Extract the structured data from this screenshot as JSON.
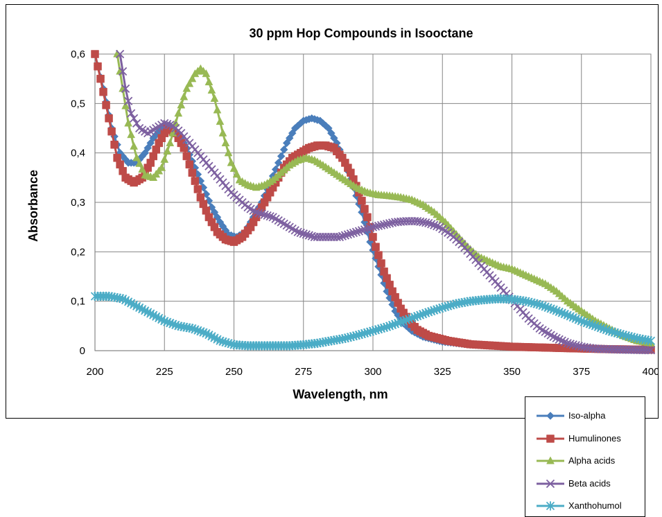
{
  "chart_data": {
    "type": "line",
    "title": "30 ppm Hop Compounds in Isooctane",
    "xlabel": "Wavelength, nm",
    "ylabel": "Absorbance",
    "xlim": [
      200,
      400
    ],
    "ylim": [
      0,
      0.6
    ],
    "x_ticks": [
      "200",
      "225",
      "250",
      "275",
      "300",
      "325",
      "350",
      "375",
      "400"
    ],
    "y_ticks": [
      "0",
      "0,1",
      "0,2",
      "0,3",
      "0,4",
      "0,5",
      "0,6"
    ],
    "grid": true,
    "legend_position": "bottom-right, outside",
    "series": [
      {
        "name": "Iso-alpha",
        "color": "#4a7ebb",
        "marker": "diamond",
        "points": [
          [
            200,
            0.6
          ],
          [
            203,
            0.53
          ],
          [
            206,
            0.45
          ],
          [
            209,
            0.4
          ],
          [
            212,
            0.38
          ],
          [
            215,
            0.38
          ],
          [
            218,
            0.4
          ],
          [
            221,
            0.43
          ],
          [
            224,
            0.45
          ],
          [
            227,
            0.455
          ],
          [
            230,
            0.44
          ],
          [
            233,
            0.41
          ],
          [
            236,
            0.37
          ],
          [
            239,
            0.33
          ],
          [
            242,
            0.29
          ],
          [
            245,
            0.26
          ],
          [
            248,
            0.235
          ],
          [
            251,
            0.23
          ],
          [
            254,
            0.24
          ],
          [
            257,
            0.27
          ],
          [
            260,
            0.3
          ],
          [
            263,
            0.34
          ],
          [
            266,
            0.38
          ],
          [
            269,
            0.42
          ],
          [
            272,
            0.45
          ],
          [
            275,
            0.465
          ],
          [
            278,
            0.47
          ],
          [
            281,
            0.465
          ],
          [
            284,
            0.45
          ],
          [
            287,
            0.42
          ],
          [
            290,
            0.38
          ],
          [
            293,
            0.33
          ],
          [
            296,
            0.28
          ],
          [
            299,
            0.22
          ],
          [
            302,
            0.17
          ],
          [
            305,
            0.12
          ],
          [
            308,
            0.08
          ],
          [
            311,
            0.055
          ],
          [
            314,
            0.04
          ],
          [
            318,
            0.028
          ],
          [
            325,
            0.018
          ],
          [
            335,
            0.012
          ],
          [
            350,
            0.008
          ],
          [
            370,
            0.005
          ],
          [
            385,
            0.003
          ],
          [
            400,
            0.002
          ]
        ]
      },
      {
        "name": "Humulinones",
        "color": "#be4b48",
        "marker": "square",
        "points": [
          [
            200,
            0.6
          ],
          [
            202,
            0.55
          ],
          [
            205,
            0.47
          ],
          [
            208,
            0.39
          ],
          [
            211,
            0.35
          ],
          [
            214,
            0.34
          ],
          [
            217,
            0.35
          ],
          [
            220,
            0.38
          ],
          [
            223,
            0.42
          ],
          [
            226,
            0.45
          ],
          [
            229,
            0.44
          ],
          [
            232,
            0.41
          ],
          [
            235,
            0.36
          ],
          [
            238,
            0.31
          ],
          [
            241,
            0.27
          ],
          [
            244,
            0.24
          ],
          [
            247,
            0.225
          ],
          [
            250,
            0.22
          ],
          [
            253,
            0.23
          ],
          [
            256,
            0.25
          ],
          [
            259,
            0.28
          ],
          [
            262,
            0.31
          ],
          [
            265,
            0.34
          ],
          [
            268,
            0.37
          ],
          [
            271,
            0.39
          ],
          [
            274,
            0.4
          ],
          [
            277,
            0.41
          ],
          [
            280,
            0.415
          ],
          [
            283,
            0.415
          ],
          [
            286,
            0.41
          ],
          [
            289,
            0.39
          ],
          [
            292,
            0.36
          ],
          [
            295,
            0.32
          ],
          [
            298,
            0.27
          ],
          [
            301,
            0.21
          ],
          [
            304,
            0.16
          ],
          [
            307,
            0.12
          ],
          [
            310,
            0.085
          ],
          [
            313,
            0.06
          ],
          [
            316,
            0.042
          ],
          [
            320,
            0.03
          ],
          [
            327,
            0.02
          ],
          [
            335,
            0.013
          ],
          [
            350,
            0.008
          ],
          [
            370,
            0.005
          ],
          [
            385,
            0.003
          ],
          [
            400,
            0.002
          ]
        ]
      },
      {
        "name": "Alpha acids",
        "color": "#98b954",
        "marker": "triangle",
        "points": [
          [
            208,
            0.6
          ],
          [
            210,
            0.53
          ],
          [
            212,
            0.46
          ],
          [
            215,
            0.39
          ],
          [
            218,
            0.355
          ],
          [
            221,
            0.35
          ],
          [
            224,
            0.37
          ],
          [
            227,
            0.42
          ],
          [
            230,
            0.48
          ],
          [
            233,
            0.53
          ],
          [
            236,
            0.56
          ],
          [
            238,
            0.57
          ],
          [
            240,
            0.56
          ],
          [
            243,
            0.51
          ],
          [
            246,
            0.44
          ],
          [
            249,
            0.38
          ],
          [
            252,
            0.345
          ],
          [
            255,
            0.335
          ],
          [
            258,
            0.33
          ],
          [
            261,
            0.335
          ],
          [
            264,
            0.345
          ],
          [
            267,
            0.36
          ],
          [
            270,
            0.375
          ],
          [
            273,
            0.385
          ],
          [
            276,
            0.39
          ],
          [
            279,
            0.385
          ],
          [
            282,
            0.375
          ],
          [
            286,
            0.36
          ],
          [
            290,
            0.345
          ],
          [
            294,
            0.33
          ],
          [
            298,
            0.32
          ],
          [
            302,
            0.315
          ],
          [
            306,
            0.313
          ],
          [
            310,
            0.31
          ],
          [
            314,
            0.305
          ],
          [
            318,
            0.295
          ],
          [
            322,
            0.28
          ],
          [
            326,
            0.26
          ],
          [
            330,
            0.235
          ],
          [
            334,
            0.21
          ],
          [
            338,
            0.19
          ],
          [
            342,
            0.18
          ],
          [
            346,
            0.17
          ],
          [
            350,
            0.165
          ],
          [
            354,
            0.155
          ],
          [
            358,
            0.145
          ],
          [
            362,
            0.135
          ],
          [
            366,
            0.12
          ],
          [
            370,
            0.1
          ],
          [
            375,
            0.08
          ],
          [
            380,
            0.06
          ],
          [
            385,
            0.045
          ],
          [
            390,
            0.03
          ],
          [
            395,
            0.02
          ],
          [
            400,
            0.015
          ]
        ]
      },
      {
        "name": "Beta acids",
        "color": "#7d60a0",
        "marker": "x",
        "points": [
          [
            209,
            0.6
          ],
          [
            211,
            0.53
          ],
          [
            213,
            0.48
          ],
          [
            216,
            0.45
          ],
          [
            219,
            0.44
          ],
          [
            222,
            0.45
          ],
          [
            225,
            0.46
          ],
          [
            228,
            0.455
          ],
          [
            231,
            0.44
          ],
          [
            234,
            0.42
          ],
          [
            237,
            0.4
          ],
          [
            240,
            0.38
          ],
          [
            243,
            0.36
          ],
          [
            246,
            0.34
          ],
          [
            249,
            0.32
          ],
          [
            252,
            0.305
          ],
          [
            255,
            0.29
          ],
          [
            258,
            0.28
          ],
          [
            261,
            0.275
          ],
          [
            264,
            0.27
          ],
          [
            267,
            0.26
          ],
          [
            270,
            0.25
          ],
          [
            273,
            0.24
          ],
          [
            276,
            0.235
          ],
          [
            279,
            0.23
          ],
          [
            282,
            0.23
          ],
          [
            285,
            0.23
          ],
          [
            288,
            0.23
          ],
          [
            291,
            0.235
          ],
          [
            294,
            0.24
          ],
          [
            297,
            0.245
          ],
          [
            300,
            0.25
          ],
          [
            304,
            0.255
          ],
          [
            308,
            0.26
          ],
          [
            312,
            0.262
          ],
          [
            316,
            0.262
          ],
          [
            320,
            0.258
          ],
          [
            324,
            0.25
          ],
          [
            328,
            0.235
          ],
          [
            332,
            0.215
          ],
          [
            336,
            0.19
          ],
          [
            340,
            0.165
          ],
          [
            344,
            0.14
          ],
          [
            348,
            0.115
          ],
          [
            352,
            0.09
          ],
          [
            356,
            0.065
          ],
          [
            360,
            0.045
          ],
          [
            365,
            0.028
          ],
          [
            370,
            0.015
          ],
          [
            375,
            0.008
          ],
          [
            380,
            0.004
          ],
          [
            390,
            0.002
          ],
          [
            400,
            0.001
          ]
        ]
      },
      {
        "name": "Xanthohumol",
        "color": "#4bacc6",
        "marker": "star",
        "points": [
          [
            200,
            0.11
          ],
          [
            205,
            0.11
          ],
          [
            210,
            0.105
          ],
          [
            215,
            0.09
          ],
          [
            220,
            0.075
          ],
          [
            225,
            0.06
          ],
          [
            230,
            0.05
          ],
          [
            235,
            0.045
          ],
          [
            240,
            0.035
          ],
          [
            245,
            0.02
          ],
          [
            250,
            0.012
          ],
          [
            255,
            0.01
          ],
          [
            260,
            0.01
          ],
          [
            265,
            0.01
          ],
          [
            270,
            0.01
          ],
          [
            275,
            0.012
          ],
          [
            280,
            0.015
          ],
          [
            285,
            0.02
          ],
          [
            290,
            0.025
          ],
          [
            295,
            0.032
          ],
          [
            300,
            0.04
          ],
          [
            305,
            0.048
          ],
          [
            310,
            0.058
          ],
          [
            315,
            0.068
          ],
          [
            320,
            0.078
          ],
          [
            325,
            0.087
          ],
          [
            330,
            0.095
          ],
          [
            335,
            0.1
          ],
          [
            340,
            0.103
          ],
          [
            345,
            0.105
          ],
          [
            350,
            0.104
          ],
          [
            355,
            0.1
          ],
          [
            360,
            0.093
          ],
          [
            365,
            0.083
          ],
          [
            370,
            0.072
          ],
          [
            375,
            0.06
          ],
          [
            380,
            0.05
          ],
          [
            385,
            0.04
          ],
          [
            390,
            0.032
          ],
          [
            395,
            0.025
          ],
          [
            400,
            0.02
          ]
        ]
      }
    ]
  }
}
